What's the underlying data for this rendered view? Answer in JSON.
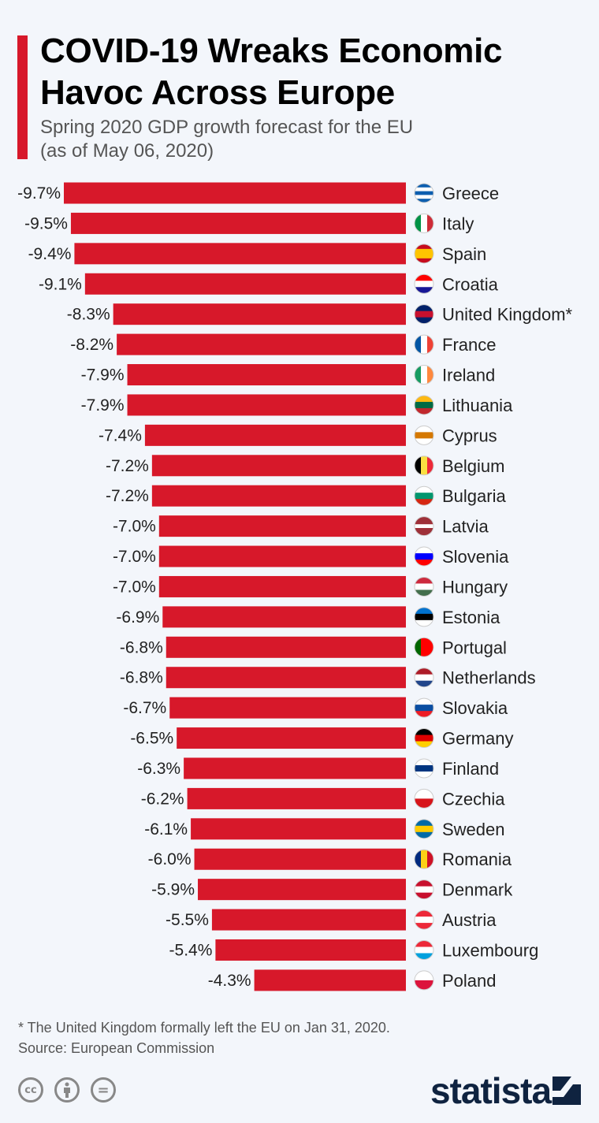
{
  "header": {
    "title_line1": "COVID-19 Wreaks Economic",
    "title_line2": "Havoc Across Europe",
    "subtitle_line1": "Spring 2020 GDP growth forecast for the EU",
    "subtitle_line2": "(as of May 06, 2020)"
  },
  "colors": {
    "bar": "#d7182a",
    "accent": "#d7182a",
    "background": "#f3f6fb"
  },
  "chart_data": {
    "type": "bar",
    "orientation": "horizontal",
    "title": "COVID-19 Wreaks Economic Havoc Across Europe",
    "xlabel": "",
    "ylabel": "",
    "xlim": [
      -9.7,
      0
    ],
    "grid": false,
    "unit": "%",
    "categories": [
      "Greece",
      "Italy",
      "Spain",
      "Croatia",
      "United Kingdom*",
      "France",
      "Ireland",
      "Lithuania",
      "Cyprus",
      "Belgium",
      "Bulgaria",
      "Latvia",
      "Slovenia",
      "Hungary",
      "Estonia",
      "Portugal",
      "Netherlands",
      "Slovakia",
      "Germany",
      "Finland",
      "Czechia",
      "Sweden",
      "Romania",
      "Denmark",
      "Austria",
      "Luxembourg",
      "Poland"
    ],
    "values": [
      -9.7,
      -9.5,
      -9.4,
      -9.1,
      -8.3,
      -8.2,
      -7.9,
      -7.9,
      -7.4,
      -7.2,
      -7.2,
      -7.0,
      -7.0,
      -7.0,
      -6.9,
      -6.8,
      -6.8,
      -6.7,
      -6.5,
      -6.3,
      -6.2,
      -6.1,
      -6.0,
      -5.9,
      -5.5,
      -5.4,
      -4.3
    ],
    "labels": [
      "-9.7%",
      "-9.5%",
      "-9.4%",
      "-9.1%",
      "-8.3%",
      "-8.2%",
      "-7.9%",
      "-7.9%",
      "-7.4%",
      "-7.2%",
      "-7.2%",
      "-7.0%",
      "-7.0%",
      "-7.0%",
      "-6.9%",
      "-6.8%",
      "-6.8%",
      "-6.7%",
      "-6.5%",
      "-6.3%",
      "-6.2%",
      "-6.1%",
      "-6.0%",
      "-5.9%",
      "-5.5%",
      "-5.4%",
      "-4.3%"
    ]
  },
  "flags": [
    {
      "icon": "greece-flag-icon",
      "dir": "h",
      "colors": [
        "#0d5eaf",
        "#ffffff",
        "#0d5eaf",
        "#ffffff",
        "#0d5eaf"
      ]
    },
    {
      "icon": "italy-flag-icon",
      "dir": "v",
      "colors": [
        "#009246",
        "#ffffff",
        "#ce2b37"
      ]
    },
    {
      "icon": "spain-flag-icon",
      "dir": "h",
      "colors": [
        "#c60b1e",
        "#ffc400",
        "#ffc400",
        "#c60b1e"
      ]
    },
    {
      "icon": "croatia-flag-icon",
      "dir": "h",
      "colors": [
        "#ff0000",
        "#ffffff",
        "#171796"
      ]
    },
    {
      "icon": "uk-flag-icon",
      "dir": "h",
      "colors": [
        "#012169",
        "#c8102e",
        "#012169"
      ]
    },
    {
      "icon": "france-flag-icon",
      "dir": "v",
      "colors": [
        "#0055a4",
        "#ffffff",
        "#ef4135"
      ]
    },
    {
      "icon": "ireland-flag-icon",
      "dir": "v",
      "colors": [
        "#169b62",
        "#ffffff",
        "#ff883e"
      ]
    },
    {
      "icon": "lithuania-flag-icon",
      "dir": "h",
      "colors": [
        "#fdb913",
        "#006a44",
        "#c1272d"
      ]
    },
    {
      "icon": "cyprus-flag-icon",
      "dir": "h",
      "colors": [
        "#ffffff",
        "#d57800",
        "#ffffff"
      ]
    },
    {
      "icon": "belgium-flag-icon",
      "dir": "v",
      "colors": [
        "#000000",
        "#fae042",
        "#ed2939"
      ]
    },
    {
      "icon": "bulgaria-flag-icon",
      "dir": "h",
      "colors": [
        "#ffffff",
        "#00966e",
        "#d62612"
      ]
    },
    {
      "icon": "latvia-flag-icon",
      "dir": "h",
      "colors": [
        "#9e3039",
        "#9e3039",
        "#ffffff",
        "#9e3039",
        "#9e3039"
      ]
    },
    {
      "icon": "slovenia-flag-icon",
      "dir": "h",
      "colors": [
        "#ffffff",
        "#0000ff",
        "#ff0000"
      ]
    },
    {
      "icon": "hungary-flag-icon",
      "dir": "h",
      "colors": [
        "#cd2a3e",
        "#ffffff",
        "#436f4d"
      ]
    },
    {
      "icon": "estonia-flag-icon",
      "dir": "h",
      "colors": [
        "#0072ce",
        "#000000",
        "#ffffff"
      ]
    },
    {
      "icon": "portugal-flag-icon",
      "dir": "v",
      "colors": [
        "#006600",
        "#ff0000",
        "#ff0000"
      ]
    },
    {
      "icon": "netherlands-flag-icon",
      "dir": "h",
      "colors": [
        "#ae1c28",
        "#ffffff",
        "#21468b"
      ]
    },
    {
      "icon": "slovakia-flag-icon",
      "dir": "h",
      "colors": [
        "#ffffff",
        "#0b4ea2",
        "#ee1c25"
      ]
    },
    {
      "icon": "germany-flag-icon",
      "dir": "h",
      "colors": [
        "#000000",
        "#dd0000",
        "#ffce00"
      ]
    },
    {
      "icon": "finland-flag-icon",
      "dir": "h",
      "colors": [
        "#ffffff",
        "#003580",
        "#ffffff"
      ]
    },
    {
      "icon": "czechia-flag-icon",
      "dir": "h",
      "colors": [
        "#ffffff",
        "#d7141a"
      ]
    },
    {
      "icon": "sweden-flag-icon",
      "dir": "h",
      "colors": [
        "#006aa7",
        "#fecc00",
        "#006aa7"
      ]
    },
    {
      "icon": "romania-flag-icon",
      "dir": "v",
      "colors": [
        "#002b7f",
        "#fcd116",
        "#ce1126"
      ]
    },
    {
      "icon": "denmark-flag-icon",
      "dir": "h",
      "colors": [
        "#c8102e",
        "#ffffff",
        "#c8102e"
      ]
    },
    {
      "icon": "austria-flag-icon",
      "dir": "h",
      "colors": [
        "#ed2939",
        "#ffffff",
        "#ed2939"
      ]
    },
    {
      "icon": "luxembourg-flag-icon",
      "dir": "h",
      "colors": [
        "#ed2939",
        "#ffffff",
        "#00a1de"
      ]
    },
    {
      "icon": "poland-flag-icon",
      "dir": "h",
      "colors": [
        "#ffffff",
        "#dc143c"
      ]
    }
  ],
  "footer": {
    "note": "* The United Kingdom formally left the EU on Jan 31, 2020.",
    "source": "Source: European Commission",
    "license_icons": [
      "cc",
      "by",
      "nd"
    ],
    "cc_text": "cc",
    "nd_text": "=",
    "brand": "statista"
  }
}
